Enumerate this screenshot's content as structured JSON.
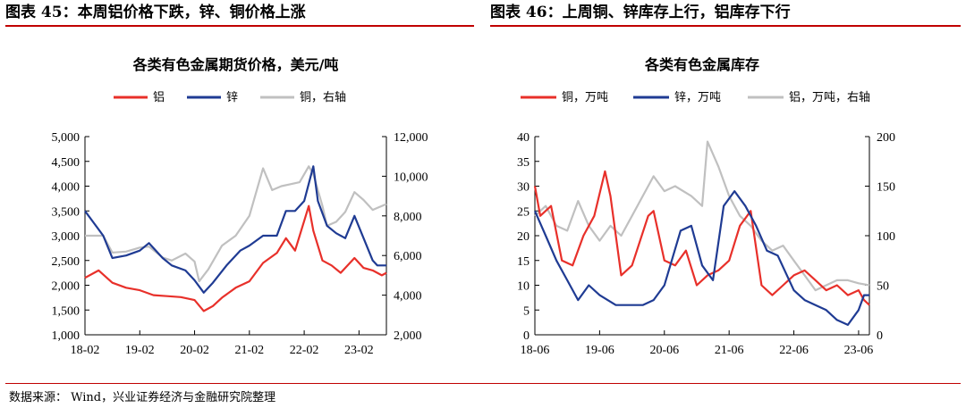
{
  "left_panel": {
    "header": "图表 45：本周铝价格下跌，锌、铜价格上涨"
  },
  "right_panel": {
    "header": "图表 46：上周铜、锌库存上行，铝库存下行"
  },
  "source_note": "数据来源： Wind，兴业证券经济与金融研究院整理",
  "chart_data": [
    {
      "type": "line",
      "title": "各类有色金属期货价格，美元/吨",
      "x_ticks": [
        "18-02",
        "19-02",
        "20-02",
        "21-02",
        "22-02",
        "23-02"
      ],
      "x_range": [
        "2018-02",
        "2023-08"
      ],
      "y_left": {
        "min": 1000,
        "max": 5000,
        "ticks": [
          "1,000",
          "1,500",
          "2,000",
          "2,500",
          "3,000",
          "3,500",
          "4,000",
          "4,500",
          "5,000"
        ]
      },
      "y_right": {
        "min": 2000,
        "max": 12000,
        "ticks": [
          "2,000",
          "4,000",
          "6,000",
          "8,000",
          "10,000",
          "12,000"
        ]
      },
      "grid": false,
      "legend_position": "top",
      "series": [
        {
          "name": "铝",
          "color": "#e8302a",
          "axis": "left",
          "points": [
            [
              "2018-02",
              2150
            ],
            [
              "2018-04",
              2250
            ],
            [
              "2018-05",
              2300
            ],
            [
              "2018-08",
              2050
            ],
            [
              "2018-11",
              1950
            ],
            [
              "2019-02",
              1900
            ],
            [
              "2019-05",
              1800
            ],
            [
              "2019-08",
              1780
            ],
            [
              "2019-11",
              1760
            ],
            [
              "2020-02",
              1700
            ],
            [
              "2020-04",
              1480
            ],
            [
              "2020-06",
              1580
            ],
            [
              "2020-08",
              1750
            ],
            [
              "2020-11",
              1950
            ],
            [
              "2021-02",
              2080
            ],
            [
              "2021-05",
              2450
            ],
            [
              "2021-08",
              2650
            ],
            [
              "2021-10",
              2950
            ],
            [
              "2021-12",
              2700
            ],
            [
              "2022-02",
              3300
            ],
            [
              "2022-03",
              3600
            ],
            [
              "2022-04",
              3100
            ],
            [
              "2022-06",
              2500
            ],
            [
              "2022-08",
              2400
            ],
            [
              "2022-10",
              2250
            ],
            [
              "2022-12",
              2450
            ],
            [
              "2023-01",
              2550
            ],
            [
              "2023-03",
              2350
            ],
            [
              "2023-05",
              2300
            ],
            [
              "2023-07",
              2200
            ],
            [
              "2023-08",
              2250
            ]
          ]
        },
        {
          "name": "锌",
          "color": "#1f3b93",
          "axis": "left",
          "points": [
            [
              "2018-02",
              3500
            ],
            [
              "2018-04",
              3250
            ],
            [
              "2018-06",
              3000
            ],
            [
              "2018-08",
              2550
            ],
            [
              "2018-11",
              2600
            ],
            [
              "2019-02",
              2700
            ],
            [
              "2019-04",
              2850
            ],
            [
              "2019-07",
              2550
            ],
            [
              "2019-09",
              2400
            ],
            [
              "2019-12",
              2300
            ],
            [
              "2020-02",
              2100
            ],
            [
              "2020-04",
              1850
            ],
            [
              "2020-06",
              2050
            ],
            [
              "2020-09",
              2400
            ],
            [
              "2020-12",
              2700
            ],
            [
              "2021-02",
              2800
            ],
            [
              "2021-05",
              3000
            ],
            [
              "2021-08",
              3000
            ],
            [
              "2021-10",
              3500
            ],
            [
              "2021-12",
              3500
            ],
            [
              "2022-02",
              3700
            ],
            [
              "2022-04",
              4400
            ],
            [
              "2022-05",
              3700
            ],
            [
              "2022-07",
              3200
            ],
            [
              "2022-09",
              3050
            ],
            [
              "2022-11",
              2950
            ],
            [
              "2023-01",
              3400
            ],
            [
              "2023-03",
              2950
            ],
            [
              "2023-05",
              2500
            ],
            [
              "2023-06",
              2400
            ],
            [
              "2023-08",
              2400
            ]
          ]
        },
        {
          "name": "铜，右轴",
          "color": "#c0c0c0",
          "axis": "right",
          "points": [
            [
              "2018-02",
              7000
            ],
            [
              "2018-06",
              7000
            ],
            [
              "2018-08",
              6150
            ],
            [
              "2018-11",
              6200
            ],
            [
              "2019-02",
              6400
            ],
            [
              "2019-04",
              6450
            ],
            [
              "2019-07",
              5900
            ],
            [
              "2019-09",
              5750
            ],
            [
              "2019-12",
              6100
            ],
            [
              "2020-02",
              5700
            ],
            [
              "2020-03",
              4700
            ],
            [
              "2020-05",
              5300
            ],
            [
              "2020-08",
              6500
            ],
            [
              "2020-11",
              7000
            ],
            [
              "2021-02",
              8000
            ],
            [
              "2021-05",
              10400
            ],
            [
              "2021-07",
              9300
            ],
            [
              "2021-09",
              9500
            ],
            [
              "2021-11",
              9600
            ],
            [
              "2022-01",
              9700
            ],
            [
              "2022-03",
              10500
            ],
            [
              "2022-04",
              10100
            ],
            [
              "2022-06",
              8500
            ],
            [
              "2022-07",
              7500
            ],
            [
              "2022-09",
              7700
            ],
            [
              "2022-11",
              8200
            ],
            [
              "2023-01",
              9200
            ],
            [
              "2023-03",
              8800
            ],
            [
              "2023-05",
              8300
            ],
            [
              "2023-06",
              8400
            ],
            [
              "2023-07",
              8500
            ],
            [
              "2023-08",
              8600
            ]
          ]
        }
      ]
    },
    {
      "type": "line",
      "title": "各类有色金属库存",
      "x_ticks": [
        "18-06",
        "19-06",
        "20-06",
        "21-06",
        "22-06",
        "23-06"
      ],
      "x_range": [
        "2018-06",
        "2023-08"
      ],
      "y_left": {
        "min": 0,
        "max": 40,
        "ticks": [
          "0",
          "5",
          "10",
          "15",
          "20",
          "25",
          "30",
          "35",
          "40"
        ]
      },
      "y_right": {
        "min": 0,
        "max": 200,
        "ticks": [
          "0",
          "50",
          "100",
          "150",
          "200"
        ]
      },
      "grid": false,
      "legend_position": "top",
      "series": [
        {
          "name": "铜，万吨",
          "color": "#e8302a",
          "axis": "left",
          "points": [
            [
              "2018-06",
              30
            ],
            [
              "2018-07",
              24
            ],
            [
              "2018-09",
              26
            ],
            [
              "2018-11",
              15
            ],
            [
              "2019-01",
              14
            ],
            [
              "2019-03",
              20
            ],
            [
              "2019-05",
              24
            ],
            [
              "2019-07",
              33
            ],
            [
              "2019-08",
              28
            ],
            [
              "2019-10",
              12
            ],
            [
              "2019-12",
              14
            ],
            [
              "2020-03",
              24
            ],
            [
              "2020-04",
              25
            ],
            [
              "2020-06",
              15
            ],
            [
              "2020-08",
              14
            ],
            [
              "2020-10",
              17
            ],
            [
              "2020-12",
              10
            ],
            [
              "2021-02",
              12
            ],
            [
              "2021-04",
              13
            ],
            [
              "2021-06",
              15
            ],
            [
              "2021-08",
              22
            ],
            [
              "2021-10",
              25
            ],
            [
              "2021-12",
              10
            ],
            [
              "2022-02",
              8
            ],
            [
              "2022-04",
              10
            ],
            [
              "2022-06",
              12
            ],
            [
              "2022-08",
              13
            ],
            [
              "2022-10",
              11
            ],
            [
              "2022-12",
              9
            ],
            [
              "2023-02",
              10
            ],
            [
              "2023-04",
              8
            ],
            [
              "2023-06",
              9
            ],
            [
              "2023-07",
              7
            ],
            [
              "2023-08",
              6
            ]
          ]
        },
        {
          "name": "锌，万吨",
          "color": "#1f3b93",
          "axis": "left",
          "points": [
            [
              "2018-06",
              25
            ],
            [
              "2018-08",
              20
            ],
            [
              "2018-10",
              15
            ],
            [
              "2018-12",
              11
            ],
            [
              "2019-02",
              7
            ],
            [
              "2019-04",
              10
            ],
            [
              "2019-06",
              8
            ],
            [
              "2019-09",
              6
            ],
            [
              "2019-12",
              6
            ],
            [
              "2020-02",
              6
            ],
            [
              "2020-04",
              7
            ],
            [
              "2020-06",
              10
            ],
            [
              "2020-09",
              21
            ],
            [
              "2020-11",
              22
            ],
            [
              "2021-01",
              14
            ],
            [
              "2021-03",
              11
            ],
            [
              "2021-05",
              26
            ],
            [
              "2021-07",
              29
            ],
            [
              "2021-09",
              26
            ],
            [
              "2021-11",
              22
            ],
            [
              "2022-01",
              17
            ],
            [
              "2022-03",
              16
            ],
            [
              "2022-06",
              9
            ],
            [
              "2022-08",
              7
            ],
            [
              "2022-10",
              6
            ],
            [
              "2022-12",
              5
            ],
            [
              "2023-02",
              3
            ],
            [
              "2023-04",
              2
            ],
            [
              "2023-06",
              5
            ],
            [
              "2023-07",
              8
            ],
            [
              "2023-08",
              8
            ]
          ]
        },
        {
          "name": "铝，万吨，右轴",
          "color": "#c0c0c0",
          "axis": "right",
          "points": [
            [
              "2018-06",
              120
            ],
            [
              "2018-08",
              130
            ],
            [
              "2018-10",
              110
            ],
            [
              "2018-12",
              105
            ],
            [
              "2019-02",
              135
            ],
            [
              "2019-04",
              110
            ],
            [
              "2019-06",
              95
            ],
            [
              "2019-08",
              110
            ],
            [
              "2019-10",
              100
            ],
            [
              "2019-12",
              120
            ],
            [
              "2020-02",
              140
            ],
            [
              "2020-04",
              160
            ],
            [
              "2020-06",
              145
            ],
            [
              "2020-08",
              150
            ],
            [
              "2020-11",
              140
            ],
            [
              "2021-01",
              130
            ],
            [
              "2021-02",
              195
            ],
            [
              "2021-04",
              170
            ],
            [
              "2021-06",
              140
            ],
            [
              "2021-08",
              120
            ],
            [
              "2021-10",
              110
            ],
            [
              "2021-12",
              95
            ],
            [
              "2022-02",
              85
            ],
            [
              "2022-04",
              90
            ],
            [
              "2022-06",
              75
            ],
            [
              "2022-08",
              60
            ],
            [
              "2022-10",
              45
            ],
            [
              "2022-12",
              50
            ],
            [
              "2023-02",
              55
            ],
            [
              "2023-04",
              55
            ],
            [
              "2023-06",
              52
            ],
            [
              "2023-08",
              50
            ]
          ]
        }
      ]
    }
  ]
}
